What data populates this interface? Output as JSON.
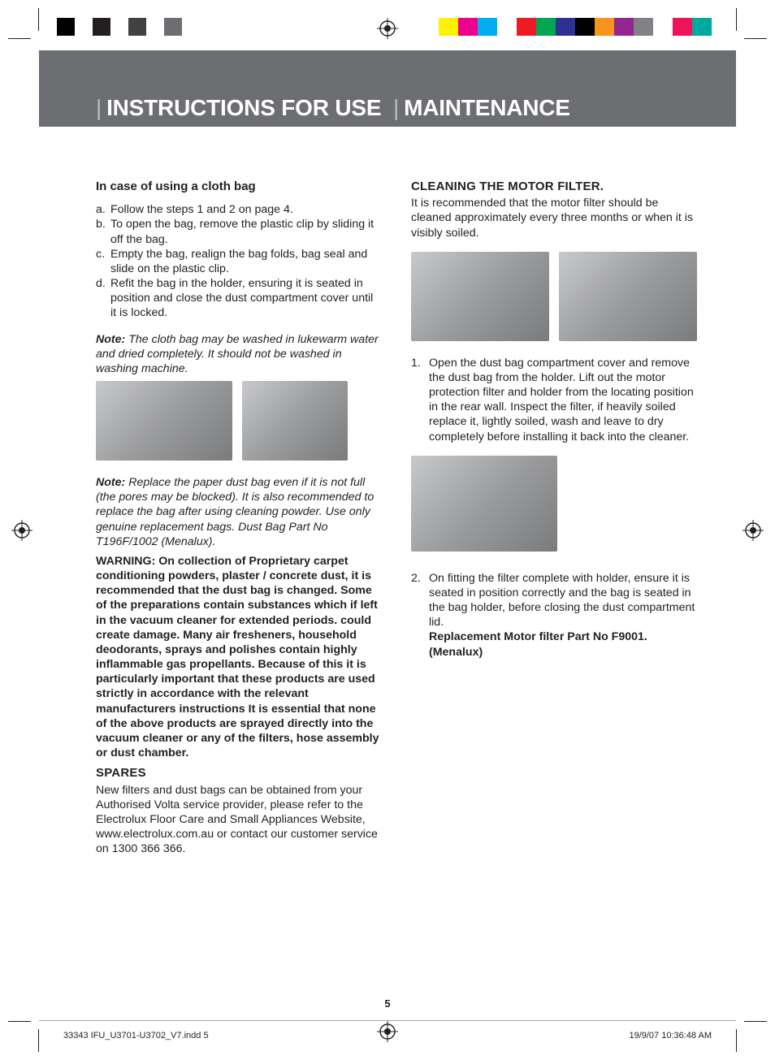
{
  "printer_marks": {
    "gray_swatches": [
      "#000000",
      "#ffffff",
      "#231f20",
      "#ffffff",
      "#414042",
      "#ffffff",
      "#6d6e71",
      "#ffffff"
    ],
    "color_swatches": [
      "#fff200",
      "#ec008c",
      "#00aeef",
      "#ffffff",
      "#ed1c24",
      "#00a651",
      "#2e3192",
      "#000000",
      "#f7941e",
      "#92278f",
      "#808285",
      "#ffffff",
      "#ed145b",
      "#00a99d",
      "#ffffff"
    ]
  },
  "header": {
    "title_left": "INSTRUCTIONS FOR USE",
    "title_right": "MAINTENANCE"
  },
  "left_column": {
    "subhead": "In case of using a cloth bag",
    "steps": [
      {
        "marker": "a.",
        "text": "Follow the steps 1 and 2 on page 4."
      },
      {
        "marker": "b.",
        "text": "To open the bag, remove the plastic clip by sliding it off the bag."
      },
      {
        "marker": "c.",
        "text": "Empty the bag, realign the bag folds, bag seal and slide on the plastic clip."
      },
      {
        "marker": "d.",
        "text": "Refit the bag in the holder, ensuring it is seated in position and close the dust compartment cover until it is locked."
      }
    ],
    "note1_label": "Note:",
    "note1_body": " The cloth bag may be washed in lukewarm water and dried completely. It should not be washed in washing machine.",
    "note2_label": "Note:",
    "note2_body": " Replace the paper dust bag even if it is not full (the pores may be blocked). It is also recommended to replace the bag after using cleaning powder. Use only genuine replacement bags. Dust Bag Part No T196F/1002 (Menalux).",
    "warning": "WARNING: On collection of Proprietary carpet conditioning powders, plaster / concrete dust, it is recommended that the dust bag is changed. Some of the preparations contain substances which if left in the vacuum cleaner for extended periods. could create damage. Many air fresheners, household deodorants, sprays and polishes contain highly inflammable gas propellants. Because of this it is particularly important that these products are used strictly in accordance with the relevant manufacturers instructions It is essential that none of the above products are sprayed directly into the vacuum cleaner or any of the filters, hose assembly or dust chamber.",
    "spares_head": "SPARES",
    "spares_body": "New filters and dust bags can be obtained from your Authorised Volta service provider, please refer to the Electrolux Floor Care and Small Appliances Website, www.electrolux.com.au or contact our customer service on 1300 366 366."
  },
  "right_column": {
    "head": "CLEANING THE MOTOR FILTER.",
    "intro": "It is recommended that the motor filter should be cleaned approximately every three months or when it is visibly soiled.",
    "step1_marker": "1.",
    "step1": "Open the dust bag compartment cover and remove the  dust bag from the holder. Lift out the motor protection filter and holder from the locating position in the rear wall. Inspect the filter, if heavily soiled replace it, lightly soiled, wash and leave to dry completely before installing it back into the cleaner.",
    "step2_marker": "2.",
    "step2": "On fitting the filter complete with holder, ensure it is seated in position correctly and the bag is seated in the bag holder, before closing the dust compartment lid.",
    "part_line": "Replacement Motor filter Part No F9001. (Menalux)"
  },
  "footer": {
    "page_number": "5",
    "indd": "33343 IFU_U3701-U3702_V7.indd   5",
    "timestamp": "19/9/07   10:36:48 AM"
  }
}
